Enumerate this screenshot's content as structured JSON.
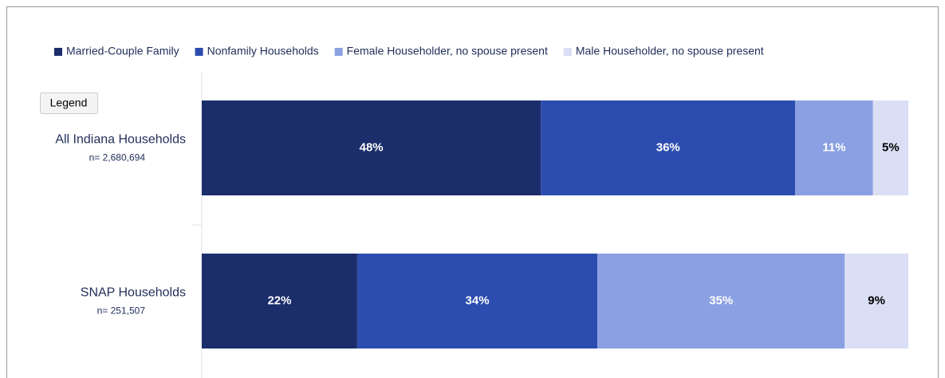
{
  "chart_data": {
    "type": "stacked_bar_h",
    "categories": [
      "All Indiana Households",
      "SNAP Households"
    ],
    "category_notes": [
      "n= 2,680,694",
      "n= 251,507"
    ],
    "xlim": [
      0,
      100
    ],
    "legend_button": "Legend",
    "series": [
      {
        "name": "Married-Couple Family",
        "color": "#1b2d6b",
        "label_color": "#ffffff",
        "values": [
          48,
          22
        ],
        "value_labels": [
          "48%",
          "22%"
        ]
      },
      {
        "name": "Nonfamily Households",
        "color": "#2c4daf",
        "label_color": "#ffffff",
        "values": [
          36,
          34
        ],
        "value_labels": [
          "36%",
          "34%"
        ]
      },
      {
        "name": "Female Householder, no spouse present",
        "color": "#8aa0e2",
        "label_color": "#ffffff",
        "values": [
          11,
          35
        ],
        "value_labels": [
          "11%",
          "35%"
        ]
      },
      {
        "name": "Male Householder, no spouse present",
        "color": "#dadff5",
        "label_color": "#000000",
        "values": [
          5,
          9
        ],
        "value_labels": [
          "5%",
          "9%"
        ]
      }
    ]
  }
}
